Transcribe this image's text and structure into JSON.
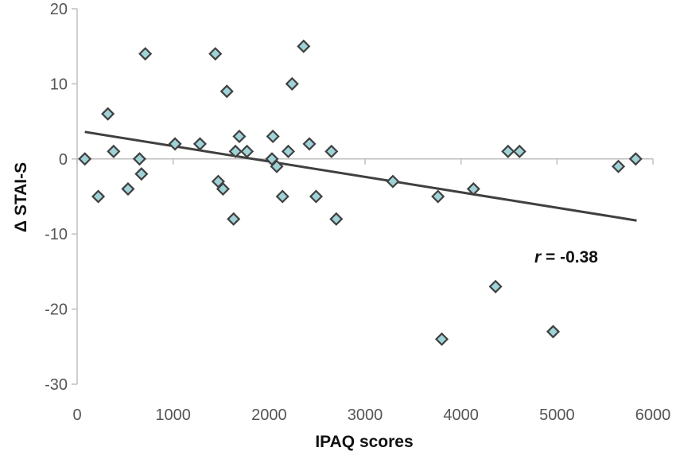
{
  "chart_data": {
    "type": "scatter",
    "xlabel": "IPAQ scores",
    "ylabel": "Δ STAI-S",
    "xlim": [
      0,
      6000
    ],
    "ylim": [
      -30,
      20
    ],
    "xticks": [
      "0",
      "1000",
      "2000",
      "3000",
      "4000",
      "5000",
      "6000"
    ],
    "yticks": [
      "20",
      "10",
      "0",
      "-10",
      "-20",
      "-30"
    ],
    "grid": false,
    "marker_fill": "#9fd3d8",
    "marker_stroke": "#404040",
    "trendline_color": "#404040",
    "trendline": {
      "x": [
        80,
        5830
      ],
      "y": [
        3.6,
        -8.2
      ]
    },
    "annotation": {
      "r_symbol": "r",
      "text": " = -0.38"
    },
    "points": [
      {
        "x": 80,
        "y": 0
      },
      {
        "x": 220,
        "y": -5
      },
      {
        "x": 320,
        "y": 6
      },
      {
        "x": 380,
        "y": 1
      },
      {
        "x": 530,
        "y": -4
      },
      {
        "x": 650,
        "y": 0
      },
      {
        "x": 670,
        "y": -2
      },
      {
        "x": 710,
        "y": 14
      },
      {
        "x": 1020,
        "y": 2
      },
      {
        "x": 1280,
        "y": 2
      },
      {
        "x": 1440,
        "y": 14
      },
      {
        "x": 1470,
        "y": -3
      },
      {
        "x": 1520,
        "y": -4
      },
      {
        "x": 1560,
        "y": 9
      },
      {
        "x": 1630,
        "y": -8
      },
      {
        "x": 1650,
        "y": 1
      },
      {
        "x": 1690,
        "y": 3
      },
      {
        "x": 1770,
        "y": 1
      },
      {
        "x": 2030,
        "y": 0
      },
      {
        "x": 2040,
        "y": 3
      },
      {
        "x": 2080,
        "y": -1
      },
      {
        "x": 2140,
        "y": -5
      },
      {
        "x": 2200,
        "y": 1
      },
      {
        "x": 2240,
        "y": 10
      },
      {
        "x": 2360,
        "y": 15
      },
      {
        "x": 2420,
        "y": 2
      },
      {
        "x": 2490,
        "y": -5
      },
      {
        "x": 2650,
        "y": 1
      },
      {
        "x": 2700,
        "y": -8
      },
      {
        "x": 3290,
        "y": -3
      },
      {
        "x": 3760,
        "y": -5
      },
      {
        "x": 3800,
        "y": -24
      },
      {
        "x": 4130,
        "y": -4
      },
      {
        "x": 4360,
        "y": -17
      },
      {
        "x": 4490,
        "y": 1
      },
      {
        "x": 4610,
        "y": 1
      },
      {
        "x": 4960,
        "y": -23
      },
      {
        "x": 5640,
        "y": -1
      },
      {
        "x": 5820,
        "y": 0
      }
    ]
  }
}
